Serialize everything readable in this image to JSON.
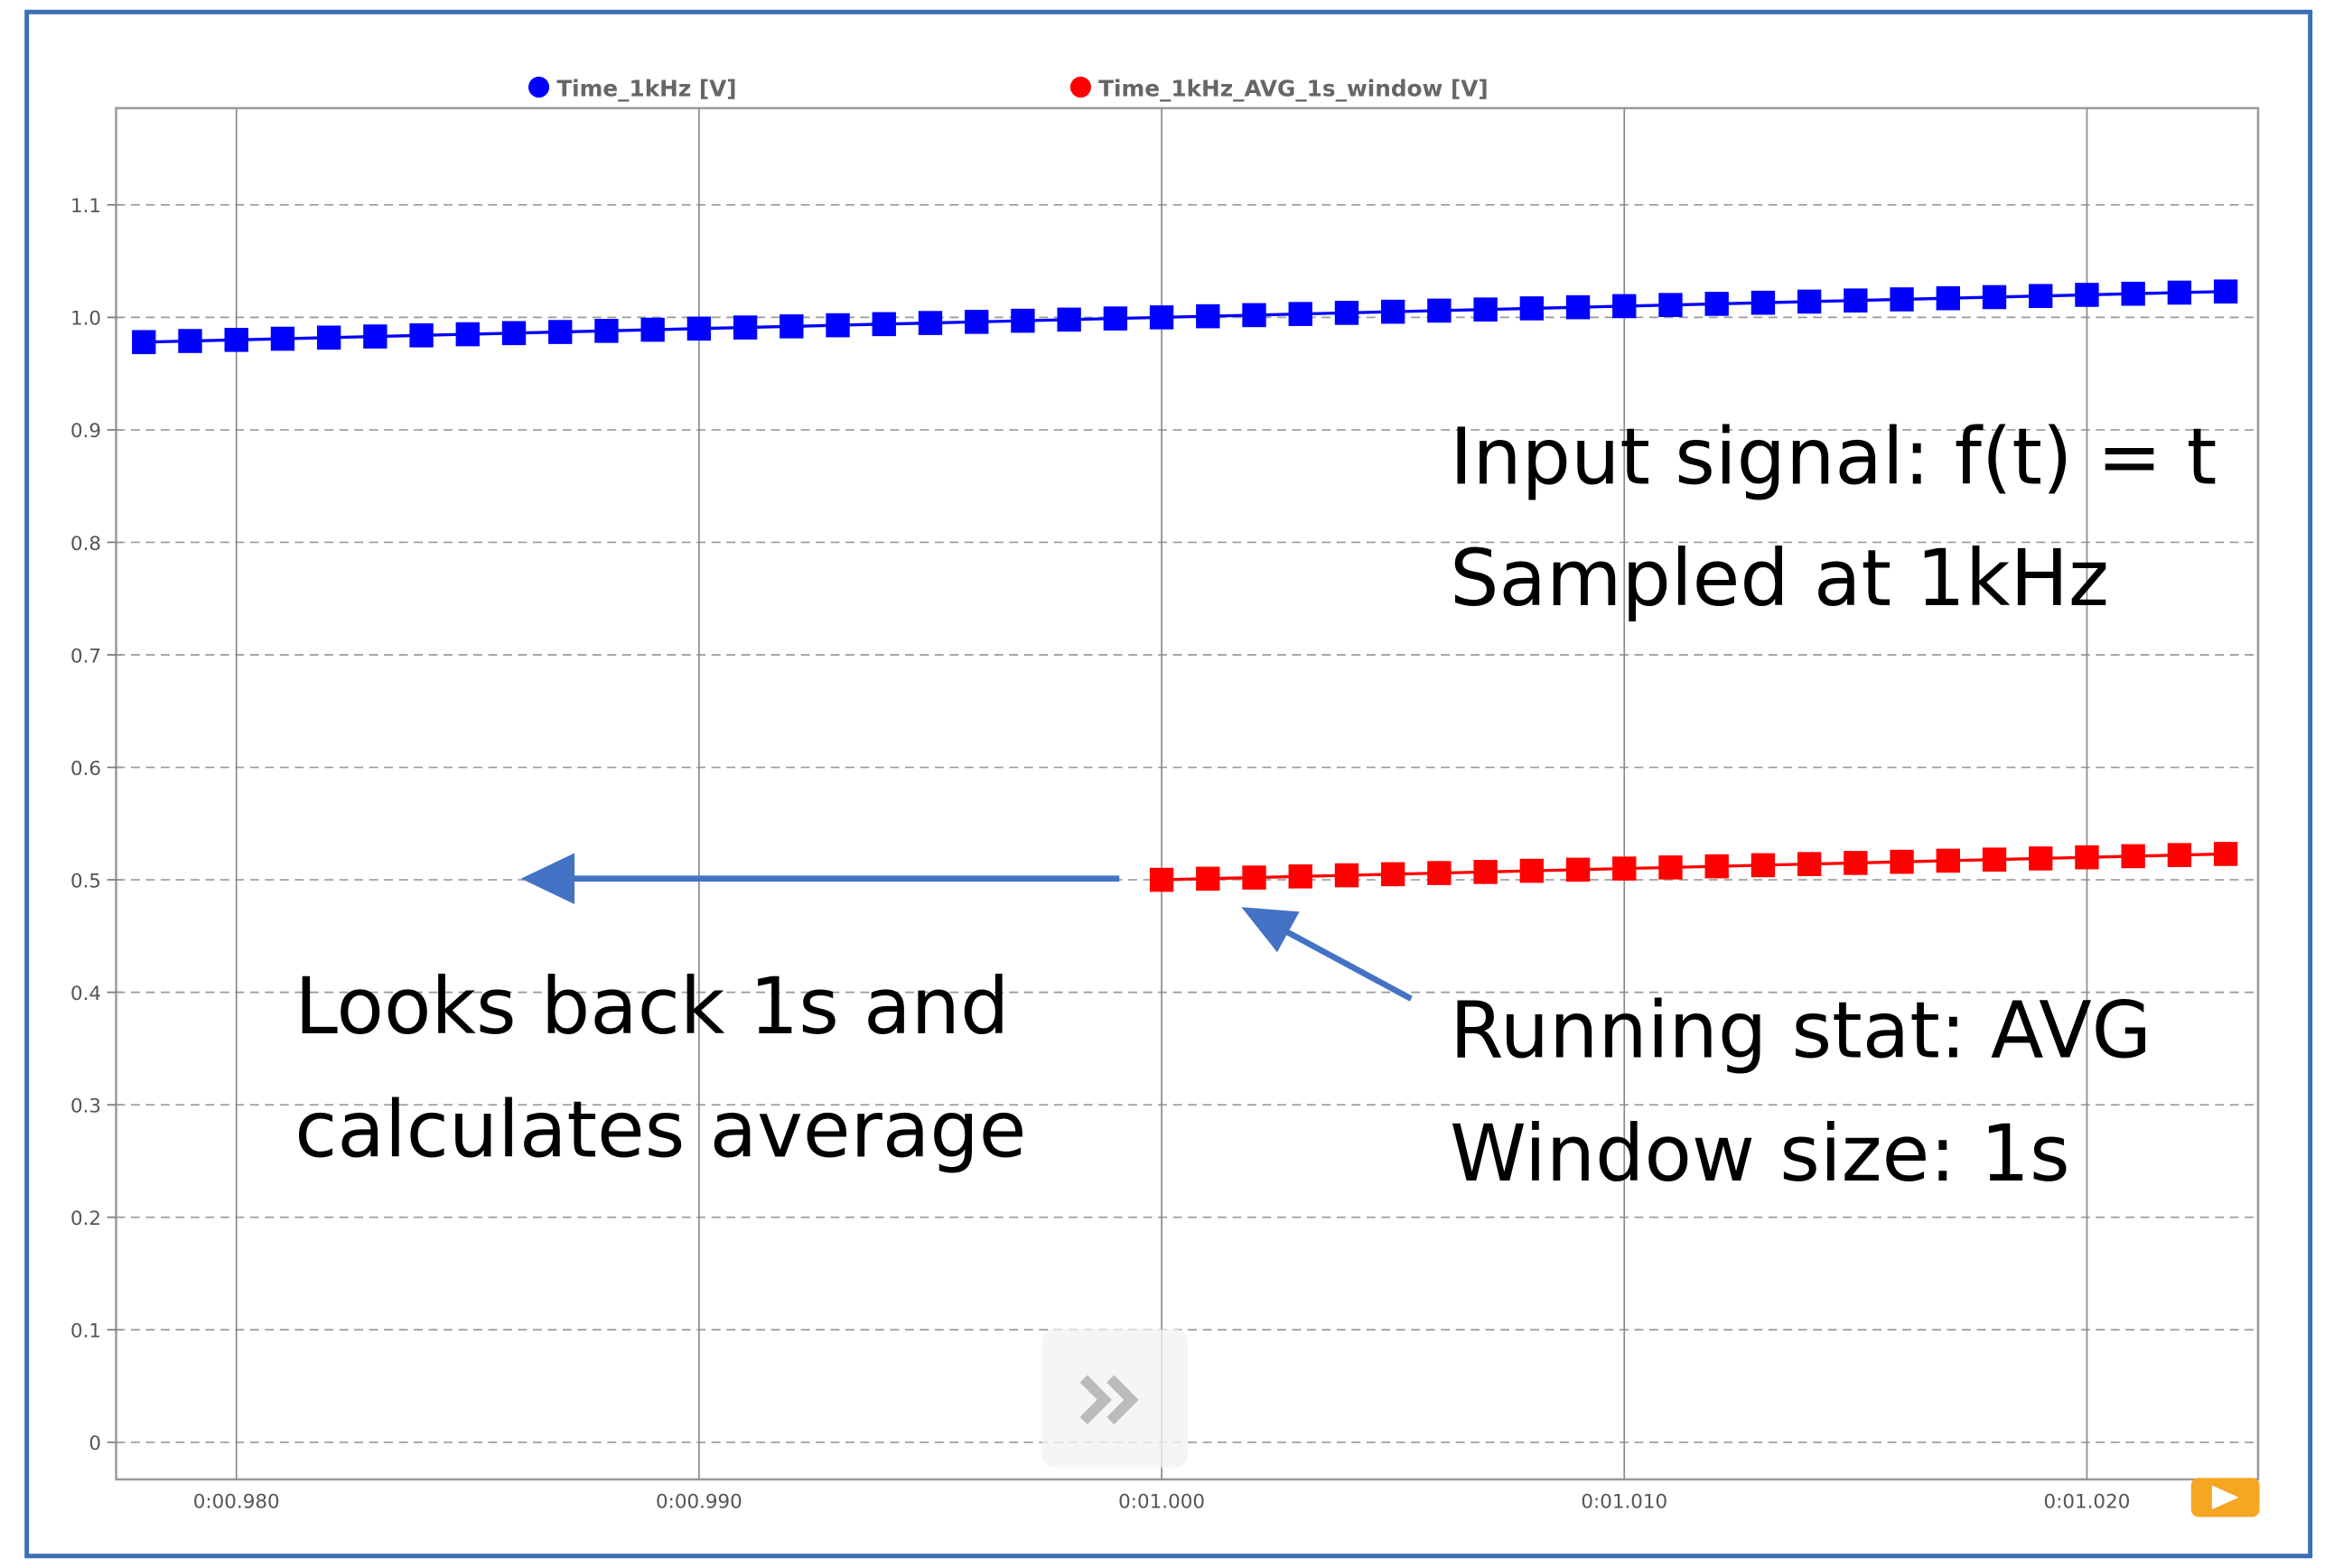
{
  "chart_data": {
    "type": "line",
    "xlim": [
      0.9774,
      1.0237
    ],
    "xticks": [
      {
        "value": 0.98,
        "label": "0:00.980"
      },
      {
        "value": 0.99,
        "label": "0:00.990"
      },
      {
        "value": 1.0,
        "label": "0:01.000"
      },
      {
        "value": 1.01,
        "label": "0:01.010"
      },
      {
        "value": 1.02,
        "label": "0:01.020"
      }
    ],
    "ylim": [
      -0.033,
      1.186
    ],
    "yticks": [
      0,
      0.1,
      0.2,
      0.3,
      0.4,
      0.5,
      0.6,
      0.7,
      0.8,
      0.9,
      {
        "value": 1,
        "label": "1.0"
      },
      1.1
    ],
    "grid": true,
    "series": [
      {
        "name": "Time_1kHz [V]",
        "color": "#0000ff",
        "x": [
          0.978,
          0.979,
          0.98,
          0.981,
          0.982,
          0.983,
          0.984,
          0.985,
          0.986,
          0.987,
          0.988,
          0.989,
          0.99,
          0.991,
          0.992,
          0.993,
          0.994,
          0.995,
          0.996,
          0.997,
          0.998,
          0.999,
          1.0,
          1.001,
          1.002,
          1.003,
          1.004,
          1.005,
          1.006,
          1.007,
          1.008,
          1.009,
          1.01,
          1.011,
          1.012,
          1.013,
          1.014,
          1.015,
          1.016,
          1.017,
          1.018,
          1.019,
          1.02,
          1.021,
          1.022,
          1.023
        ],
        "values": [
          0.978,
          0.979,
          0.98,
          0.981,
          0.982,
          0.983,
          0.984,
          0.985,
          0.986,
          0.987,
          0.988,
          0.989,
          0.99,
          0.991,
          0.992,
          0.993,
          0.994,
          0.995,
          0.996,
          0.997,
          0.998,
          0.999,
          1.0,
          1.001,
          1.002,
          1.003,
          1.004,
          1.005,
          1.006,
          1.007,
          1.008,
          1.009,
          1.01,
          1.011,
          1.012,
          1.013,
          1.014,
          1.015,
          1.016,
          1.017,
          1.018,
          1.019,
          1.02,
          1.021,
          1.022,
          1.023
        ]
      },
      {
        "name": "Time_1kHz_AVG_1s_window [V]",
        "color": "#ff0000",
        "x": [
          1.0,
          1.001,
          1.002,
          1.003,
          1.004,
          1.005,
          1.006,
          1.007,
          1.008,
          1.009,
          1.01,
          1.011,
          1.012,
          1.013,
          1.014,
          1.015,
          1.016,
          1.017,
          1.018,
          1.019,
          1.02,
          1.021,
          1.022,
          1.023
        ],
        "values": [
          0.5,
          0.501,
          0.502,
          0.503,
          0.504,
          0.505,
          0.506,
          0.507,
          0.508,
          0.509,
          0.51,
          0.511,
          0.512,
          0.513,
          0.514,
          0.515,
          0.516,
          0.517,
          0.518,
          0.519,
          0.52,
          0.521,
          0.522,
          0.523
        ]
      }
    ],
    "annotations": [
      "Input signal: f(t) = t",
      "Sampled at 1kHz",
      "Looks back 1s and",
      "calculates average",
      "Running stat: AVG",
      "Window size: 1s"
    ]
  }
}
